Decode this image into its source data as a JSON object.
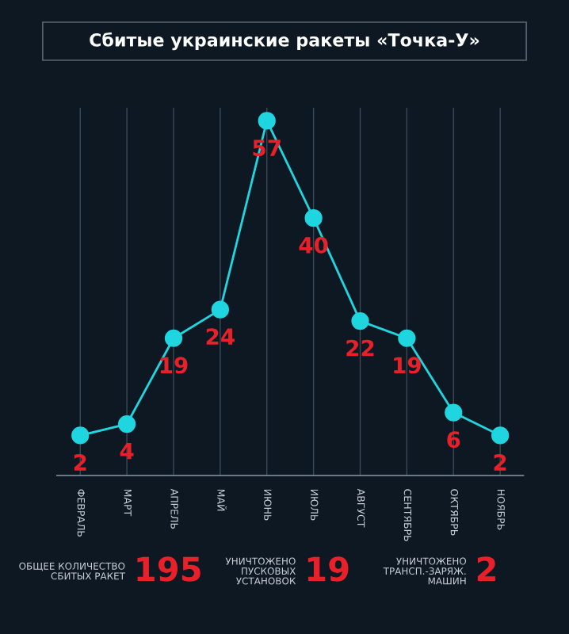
{
  "chart_data": {
    "type": "line",
    "title": "Сбитые украинские ракеты «Точка-У»",
    "categories": [
      "ФЕВРАЛЬ",
      "МАРТ",
      "АПРЕЛЬ",
      "МАЙ",
      "ИЮНЬ",
      "ИЮЛЬ",
      "АВГУСТ",
      "СЕНТЯБРЬ",
      "ОКТЯБРЬ",
      "НОЯБРЬ"
    ],
    "series": [
      {
        "color": "#1fd6e0",
        "values": [
          2,
          4,
          19,
          24,
          57,
          40,
          22,
          19,
          6,
          2
        ]
      }
    ],
    "data_labels": true,
    "marker": "circle",
    "line_style": "solid",
    "grid": "x",
    "legend": false,
    "annotations": [
      "ОБЩЕЕ КОЛИЧЕСТВО СБИТЫХ РАКЕТ 195",
      "УНИЧТОЖЕНО ПУСКОВЫХ УСТАНОВОК 19",
      "УНИЧТОЖЕНО ТРАНСП.-ЗАРЯЖ. МАШИН 2"
    ]
  }
}
